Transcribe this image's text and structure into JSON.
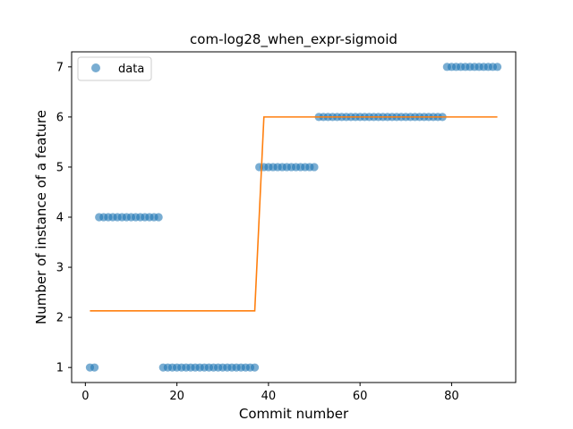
{
  "chart_data": {
    "type": "scatter",
    "title": "com-log28_when_expr-sigmoid",
    "xlabel": "Commit number",
    "ylabel": "Number of instance of a feature",
    "xlim": [
      -3,
      94
    ],
    "ylim": [
      0.7,
      7.3
    ],
    "xticks": [
      0,
      20,
      40,
      60,
      80
    ],
    "yticks": [
      1,
      2,
      3,
      4,
      5,
      6,
      7
    ],
    "grid": false,
    "legend": {
      "placement": "top-left",
      "entries": [
        "data"
      ]
    },
    "colors": {
      "data": "#1f77b4",
      "fit": "#ff7f0e"
    },
    "series": [
      {
        "name": "data",
        "kind": "scatter",
        "points": [
          [
            1,
            1
          ],
          [
            2,
            1
          ],
          [
            3,
            4
          ],
          [
            4,
            4
          ],
          [
            5,
            4
          ],
          [
            6,
            4
          ],
          [
            7,
            4
          ],
          [
            8,
            4
          ],
          [
            9,
            4
          ],
          [
            10,
            4
          ],
          [
            11,
            4
          ],
          [
            12,
            4
          ],
          [
            13,
            4
          ],
          [
            14,
            4
          ],
          [
            15,
            4
          ],
          [
            16,
            4
          ],
          [
            17,
            1
          ],
          [
            18,
            1
          ],
          [
            19,
            1
          ],
          [
            20,
            1
          ],
          [
            21,
            1
          ],
          [
            22,
            1
          ],
          [
            23,
            1
          ],
          [
            24,
            1
          ],
          [
            25,
            1
          ],
          [
            26,
            1
          ],
          [
            27,
            1
          ],
          [
            28,
            1
          ],
          [
            29,
            1
          ],
          [
            30,
            1
          ],
          [
            31,
            1
          ],
          [
            32,
            1
          ],
          [
            33,
            1
          ],
          [
            34,
            1
          ],
          [
            35,
            1
          ],
          [
            36,
            1
          ],
          [
            37,
            1
          ],
          [
            38,
            5
          ],
          [
            39,
            5
          ],
          [
            40,
            5
          ],
          [
            41,
            5
          ],
          [
            42,
            5
          ],
          [
            43,
            5
          ],
          [
            44,
            5
          ],
          [
            45,
            5
          ],
          [
            46,
            5
          ],
          [
            47,
            5
          ],
          [
            48,
            5
          ],
          [
            49,
            5
          ],
          [
            50,
            5
          ],
          [
            51,
            6
          ],
          [
            52,
            6
          ],
          [
            53,
            6
          ],
          [
            54,
            6
          ],
          [
            55,
            6
          ],
          [
            56,
            6
          ],
          [
            57,
            6
          ],
          [
            58,
            6
          ],
          [
            59,
            6
          ],
          [
            60,
            6
          ],
          [
            61,
            6
          ],
          [
            62,
            6
          ],
          [
            63,
            6
          ],
          [
            64,
            6
          ],
          [
            65,
            6
          ],
          [
            66,
            6
          ],
          [
            67,
            6
          ],
          [
            68,
            6
          ],
          [
            69,
            6
          ],
          [
            70,
            6
          ],
          [
            71,
            6
          ],
          [
            72,
            6
          ],
          [
            73,
            6
          ],
          [
            74,
            6
          ],
          [
            75,
            6
          ],
          [
            76,
            6
          ],
          [
            77,
            6
          ],
          [
            78,
            6
          ],
          [
            79,
            7
          ],
          [
            80,
            7
          ],
          [
            81,
            7
          ],
          [
            82,
            7
          ],
          [
            83,
            7
          ],
          [
            84,
            7
          ],
          [
            85,
            7
          ],
          [
            86,
            7
          ],
          [
            87,
            7
          ],
          [
            88,
            7
          ],
          [
            89,
            7
          ],
          [
            90,
            7
          ]
        ]
      },
      {
        "name": "",
        "kind": "line",
        "points": [
          [
            1,
            2.13
          ],
          [
            37,
            2.13
          ],
          [
            39,
            6.0
          ],
          [
            90,
            6.0
          ]
        ]
      }
    ]
  }
}
